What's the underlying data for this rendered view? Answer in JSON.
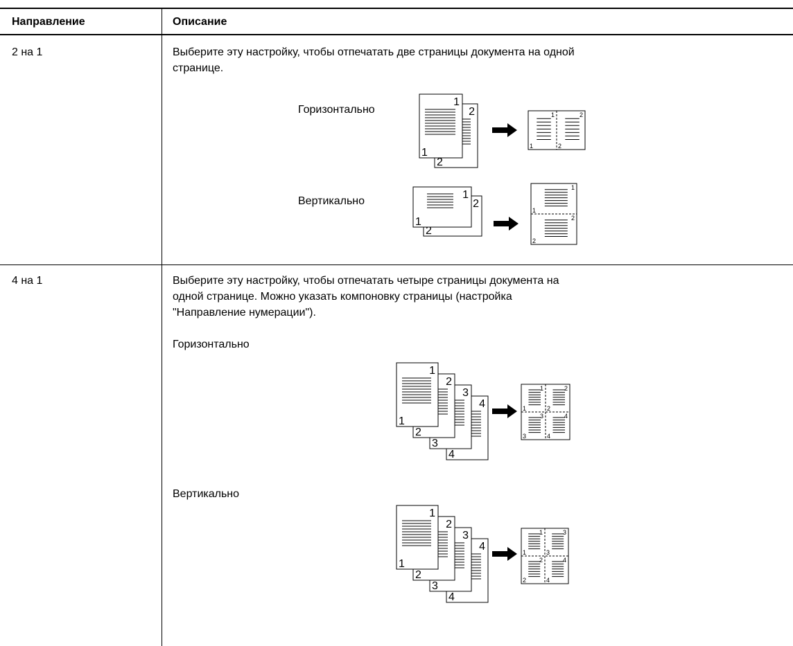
{
  "table": {
    "headers": [
      "Направление",
      "Описание"
    ],
    "rows": [
      {
        "direction": "2 на 1",
        "description": "Выберите эту настройку, чтобы отпечатать две страницы документа на одной странице.",
        "diagrams": [
          {
            "label": "Горизонтально",
            "pages": [
              "1",
              "2"
            ],
            "result_pages": [
              "1",
              "2"
            ]
          },
          {
            "label": "Вертикально",
            "pages": [
              "1",
              "2"
            ],
            "result_pages": [
              "1",
              "2"
            ]
          }
        ]
      },
      {
        "direction": "4 на 1",
        "description": "Выберите эту настройку, чтобы отпечатать четыре страницы документа на одной странице. Можно указать компоновку страницы (настройка \"Направление нумерации\").",
        "diagrams": [
          {
            "label": "Горизонтально",
            "pages": [
              "1",
              "2",
              "3",
              "4"
            ],
            "result_pages": [
              "1",
              "2",
              "3",
              "4"
            ]
          },
          {
            "label": "Вертикально",
            "pages": [
              "1",
              "2",
              "3",
              "4"
            ],
            "result_pages": [
              "1",
              "3",
              "2",
              "4"
            ]
          }
        ]
      }
    ]
  }
}
